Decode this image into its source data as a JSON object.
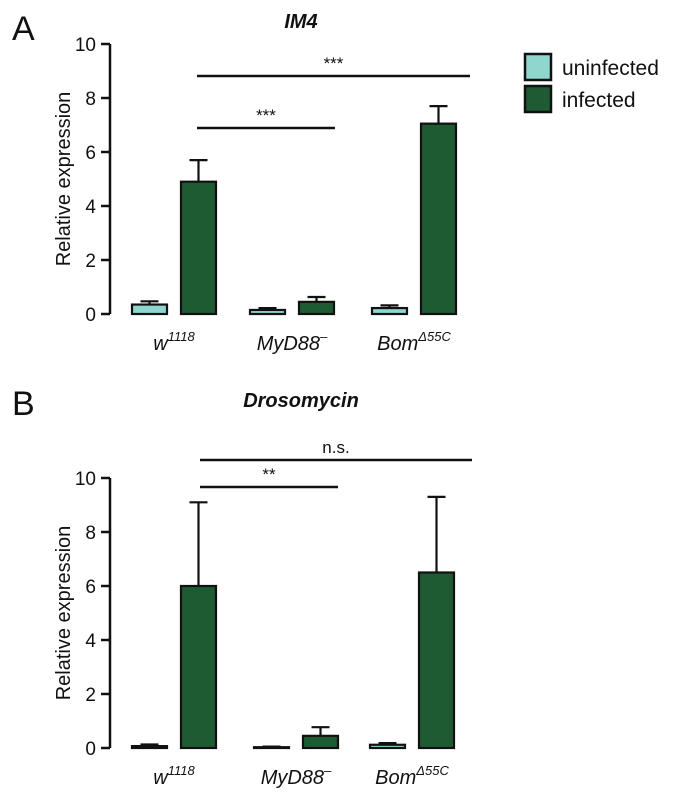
{
  "legend": {
    "position": "top-right",
    "items": [
      {
        "label": "uninfected",
        "color": "#8fd6cf"
      },
      {
        "label": "infected",
        "color": "#1e5a32"
      }
    ]
  },
  "chart_data": [
    {
      "type": "bar",
      "panel": "A",
      "title": "IM4",
      "ylabel": "Relative expression",
      "ylim": [
        0,
        10
      ],
      "yticks": [
        0,
        2,
        4,
        6,
        8,
        10
      ],
      "categories": [
        {
          "base": "w",
          "sup": "1118"
        },
        {
          "base": "MyD88",
          "sup": "–"
        },
        {
          "base": "Bom",
          "sup": "Δ55C"
        }
      ],
      "series": [
        {
          "name": "uninfected",
          "values": [
            0.35,
            0.15,
            0.22
          ],
          "errors": [
            0.12,
            0.07,
            0.1
          ]
        },
        {
          "name": "infected",
          "values": [
            4.9,
            0.45,
            7.05
          ],
          "errors": [
            0.8,
            0.18,
            0.65
          ]
        }
      ],
      "significance": [
        {
          "from": 0,
          "to": 1,
          "label": "***"
        },
        {
          "from": 0,
          "to": 2,
          "label": "***"
        }
      ]
    },
    {
      "type": "bar",
      "panel": "B",
      "title": "Drosomycin",
      "ylabel": "Relative expression",
      "ylim": [
        0,
        10
      ],
      "yticks": [
        0,
        2,
        4,
        6,
        8,
        10
      ],
      "categories": [
        {
          "base": "w",
          "sup": "1118"
        },
        {
          "base": "MyD88",
          "sup": "–"
        },
        {
          "base": "Bom",
          "sup": "Δ55C"
        }
      ],
      "series": [
        {
          "name": "uninfected",
          "values": [
            0.07,
            0.03,
            0.12
          ],
          "errors": [
            0.06,
            0.02,
            0.06
          ]
        },
        {
          "name": "infected",
          "values": [
            6.0,
            0.45,
            6.5
          ],
          "errors": [
            3.1,
            0.32,
            2.8
          ]
        }
      ],
      "significance": [
        {
          "from": 0,
          "to": 1,
          "label": "**"
        },
        {
          "from": 0,
          "to": 2,
          "label": "n.s."
        }
      ]
    }
  ]
}
